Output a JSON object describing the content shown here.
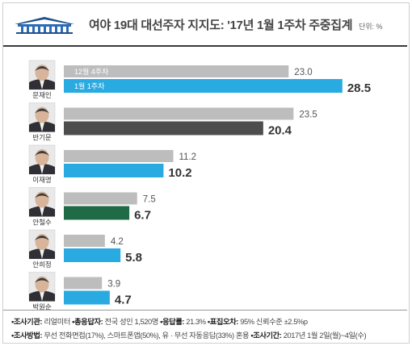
{
  "title": "여야 19대 대선주자 지지도: '17년 1월 1주차 주중집계",
  "unit_label": "단위: %",
  "chart_data": {
    "type": "bar",
    "orientation": "horizontal",
    "categories": [
      "문재인",
      "반기문",
      "이재명",
      "안철수",
      "안희정",
      "박원순"
    ],
    "series": [
      {
        "name": "12월 4주차",
        "values": [
          23.0,
          23.5,
          11.2,
          7.5,
          4.2,
          3.9
        ]
      },
      {
        "name": "1월 1주차",
        "values": [
          28.5,
          20.4,
          10.2,
          6.7,
          5.8,
          4.7
        ]
      }
    ],
    "value_labels": {
      "previous": [
        "23.0",
        "23.5",
        "11.2",
        "7.5",
        "4.2",
        "3.9"
      ],
      "current": [
        "28.5",
        "20.4",
        "10.2",
        "6.7",
        "5.8",
        "4.7"
      ]
    },
    "colors": {
      "previous": "#bdbdbd",
      "current_default": "#29abe2",
      "current": [
        "#29abe2",
        "#4d4d4d",
        "#29abe2",
        "#1f6b45",
        "#29abe2",
        "#29abe2"
      ]
    },
    "legend_placement": "inside-first-bars",
    "xlim": [
      0,
      30
    ],
    "grid": false
  },
  "footer": {
    "line1": [
      {
        "label": "•조사기관:",
        "value": " 리얼미터 "
      },
      {
        "label": "•총응답자:",
        "value": " 전국 성인 1,520명 "
      },
      {
        "label": "•응답률:",
        "value": " 21.3% "
      },
      {
        "label": "•표집오차:",
        "value": " 95% 신뢰수준 ±2.5%p"
      }
    ],
    "line2": [
      {
        "label": "•조사방법:",
        "value": " 무선 전화면접(17%), 스마트폰앱(50%), 유 · 무선 자동응답(33%) 혼용 "
      },
      {
        "label": "•조사기간:",
        "value": " 2017년 1월 2일(월)~4일(수)"
      }
    ]
  }
}
